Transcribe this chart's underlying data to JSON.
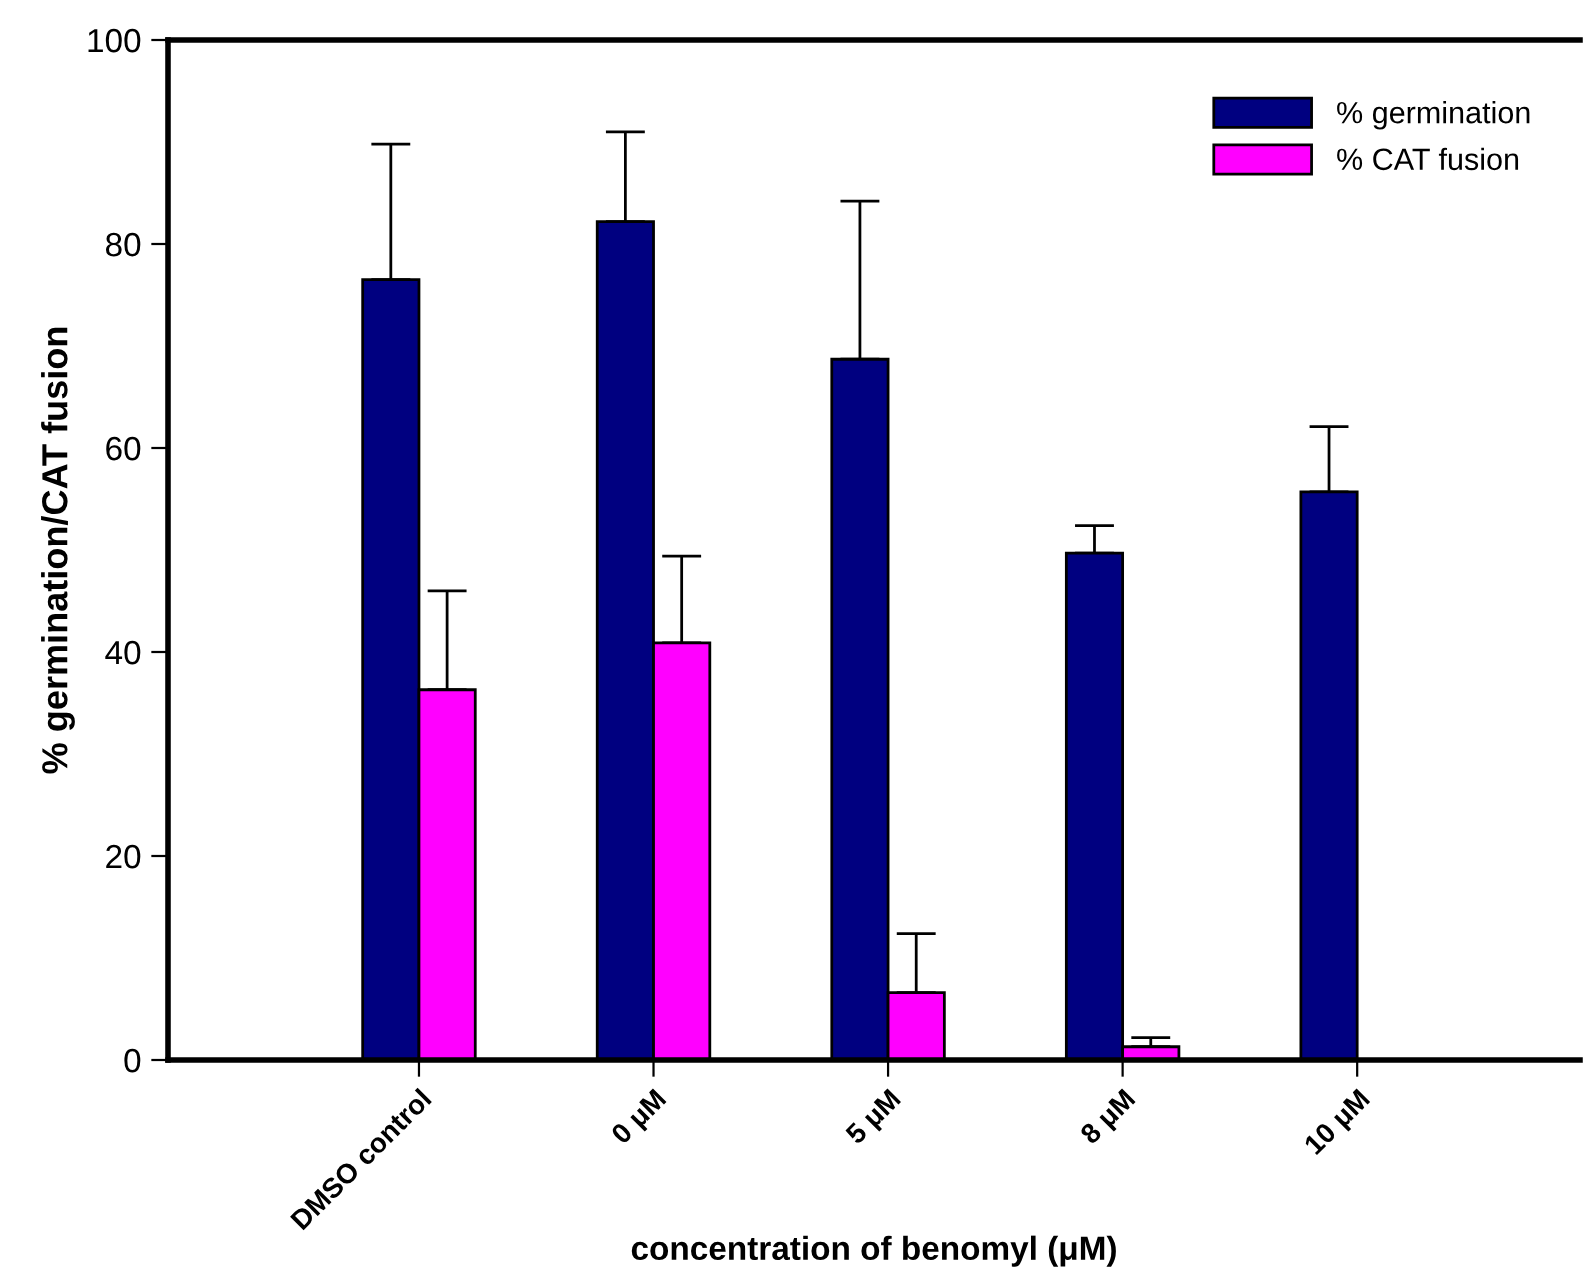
{
  "chart_data": {
    "type": "bar",
    "xlabel": "concentration of benomyl (μM)",
    "ylabel": "% germination/CAT fusion",
    "categories": [
      "DMSO control",
      "0 μM",
      "5 μM",
      "8 μM",
      "10 μM"
    ],
    "series": [
      {
        "name": "% germination",
        "color": "#000080",
        "values": [
          76.5,
          82.2,
          68.7,
          49.7,
          55.7
        ],
        "errors": [
          [
            76.5,
            89.8
          ],
          [
            82.2,
            91.0
          ],
          [
            68.7,
            84.2
          ],
          [
            49.7,
            52.4
          ],
          [
            55.7,
            62.1
          ]
        ]
      },
      {
        "name": "% CAT fusion",
        "color": "#ff00ff",
        "values": [
          36.3,
          40.9,
          6.6,
          1.3,
          null
        ],
        "errors": [
          [
            36.3,
            46.0
          ],
          [
            40.9,
            49.4
          ],
          [
            6.6,
            12.4
          ],
          [
            1.3,
            2.2
          ],
          null
        ]
      }
    ],
    "ylim": [
      0,
      100
    ],
    "yticks": [
      0,
      20,
      40,
      60,
      80,
      100
    ],
    "grid": false,
    "legend": "top right"
  }
}
